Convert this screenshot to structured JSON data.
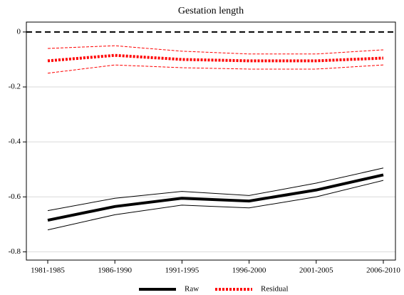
{
  "chart_data": {
    "type": "line",
    "title": "Gestation length",
    "categories": [
      "1981-1985",
      "1986-1990",
      "1991-1995",
      "1996-2000",
      "2001-2005",
      "2006-2010"
    ],
    "series": [
      {
        "name": "Raw",
        "color": "#000000",
        "style": "solid",
        "values": [
          -0.685,
          -0.635,
          -0.605,
          -0.615,
          -0.575,
          -0.52
        ],
        "upper": [
          -0.65,
          -0.605,
          -0.58,
          -0.595,
          -0.55,
          -0.495
        ],
        "lower": [
          -0.72,
          -0.665,
          -0.63,
          -0.64,
          -0.6,
          -0.54
        ]
      },
      {
        "name": "Residual",
        "color": "#ff0000",
        "style": "dotted",
        "values": [
          -0.105,
          -0.085,
          -0.1,
          -0.105,
          -0.105,
          -0.095
        ],
        "upper": [
          -0.06,
          -0.05,
          -0.07,
          -0.08,
          -0.08,
          -0.065
        ],
        "lower": [
          -0.15,
          -0.12,
          -0.13,
          -0.135,
          -0.135,
          -0.12
        ]
      }
    ],
    "ylim": [
      -0.83,
      0.036
    ],
    "yticks": [
      -0.8,
      -0.6,
      -0.4,
      -0.2,
      0
    ],
    "hline": 0,
    "grid": true,
    "legend": "bottom"
  }
}
